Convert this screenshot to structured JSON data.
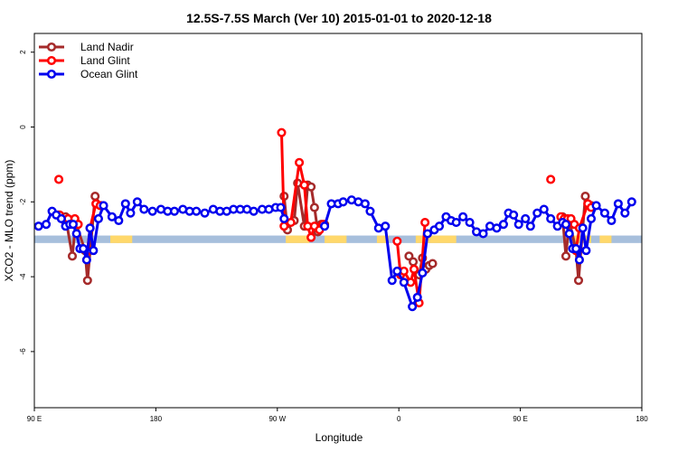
{
  "chart_data": {
    "type": "line",
    "title": "12.5S-7.5S March (Ver 10)   2015-01-01 to 2020-12-18",
    "xlabel": "Longitude",
    "ylabel": "XCO2 - MLO trend (ppm)",
    "xlim": [
      90,
      450
    ],
    "ylim": [
      -7.5,
      2.5
    ],
    "x_ticks": [
      {
        "value": 90,
        "label": "90 E"
      },
      {
        "value": 162,
        "label": "180"
      },
      {
        "value": 234,
        "label": "90 W"
      },
      {
        "value": 306,
        "label": "0"
      },
      {
        "value": 378,
        "label": "90 E"
      },
      {
        "value": 450,
        "label": "180"
      }
    ],
    "y_ticks": [
      {
        "value": 2,
        "label": "2"
      },
      {
        "value": 0,
        "label": "0"
      },
      {
        "value": -2,
        "label": "-2"
      },
      {
        "value": -4,
        "label": "-4"
      },
      {
        "value": -6,
        "label": "-6"
      }
    ],
    "grid": false,
    "legend_position": "top-left",
    "band": {
      "ymin": -3.1,
      "ymax": -2.9,
      "color": "#a7bfdc"
    },
    "land_mask": [
      {
        "x0": 135,
        "x1": 140
      },
      {
        "x0": 139,
        "x1": 148
      },
      {
        "x0": 239,
        "x1": 253
      },
      {
        "x0": 262,
        "x1": 275
      },
      {
        "x0": 293,
        "x1": 300
      },
      {
        "x0": 316,
        "x1": 322
      },
      {
        "x0": 322,
        "x1": 340
      },
      {
        "x0": 409,
        "x1": 420
      },
      {
        "x0": 425,
        "x1": 432
      }
    ],
    "land_mask_color": "#ffd86b",
    "series": [
      {
        "name": "Land Nadir",
        "color": "#a52a2a",
        "segments": [
          [
            [
              108.5,
              -2.4
            ],
            [
              112.5,
              -3.45
            ],
            [
              114.5,
              -2.55
            ],
            [
              120,
              -3.3
            ],
            [
              121.5,
              -4.1
            ],
            [
              126,
              -1.85
            ],
            [
              129.5,
              -2.1
            ]
          ],
          [
            [
              238,
              -1.85
            ],
            [
              240,
              -2.75
            ],
            [
              244,
              -2.5
            ],
            [
              246,
              -1.5
            ],
            [
              250,
              -2.65
            ],
            [
              252,
              -1.55
            ],
            [
              254,
              -1.6
            ],
            [
              256,
              -2.15
            ],
            [
              258,
              -2.8
            ],
            [
              260,
              -2.6
            ],
            [
              262,
              -2.6
            ]
          ],
          [
            [
              312,
              -3.45
            ],
            [
              314.5,
              -3.6
            ],
            [
              318,
              -3.95
            ],
            [
              320,
              -3.5
            ],
            [
              322,
              -3.8
            ],
            [
              324,
              -3.7
            ],
            [
              326,
              -3.65
            ]
          ],
          [
            [
              403,
              -2.4
            ],
            [
              405,
              -3.45
            ],
            [
              407,
              -2.5
            ],
            [
              411,
              -3.3
            ],
            [
              412.5,
              -4.1
            ],
            [
              416.5,
              -1.85
            ],
            [
              420,
              -2.1
            ]
          ]
        ],
        "outliers": []
      },
      {
        "name": "Land Glint",
        "color": "#ff0000",
        "segments": [
          [
            [
              104,
              -2.35
            ],
            [
              108,
              -2.5
            ],
            [
              110,
              -2.45
            ],
            [
              114,
              -2.45
            ],
            [
              116,
              -2.6
            ]
          ],
          [
            [
              121.5,
              -3.3
            ],
            [
              123,
              -2.7
            ],
            [
              126.5,
              -2.05
            ],
            [
              129,
              -2.1
            ]
          ],
          [
            [
              236.5,
              -0.15
            ],
            [
              238,
              -2.65
            ],
            [
              242,
              -2.55
            ],
            [
              247,
              -0.95
            ],
            [
              250,
              -1.55
            ],
            [
              252,
              -2.65
            ],
            [
              254,
              -2.95
            ],
            [
              256,
              -2.65
            ],
            [
              259,
              -2.75
            ],
            [
              261,
              -2.6
            ]
          ],
          [
            [
              305,
              -3.05
            ],
            [
              307,
              -3.95
            ],
            [
              309,
              -3.85
            ],
            [
              313,
              -4.15
            ],
            [
              315,
              -3.8
            ],
            [
              318,
              -4.7
            ],
            [
              321.5,
              -2.55
            ]
          ],
          [
            [
              402,
              -2.4
            ],
            [
              404,
              -2.45
            ],
            [
              406,
              -2.45
            ],
            [
              408,
              -2.45
            ],
            [
              410,
              -2.6
            ]
          ],
          [
            [
              411,
              -3.3
            ],
            [
              413,
              -2.7
            ],
            [
              418,
              -2.05
            ],
            [
              420,
              -2.15
            ]
          ]
        ],
        "outliers": [
          [
            104.5,
            -1.4
          ],
          [
            105,
            -2.35
          ],
          [
            396,
            -1.4
          ]
        ]
      },
      {
        "name": "Ocean Glint",
        "color": "#0000ee",
        "segments": [
          [
            [
              92.5,
              -2.65
            ],
            [
              97,
              -2.6
            ],
            [
              100.5,
              -2.25
            ],
            [
              103,
              -2.35
            ],
            [
              106,
              -2.45
            ],
            [
              108.5,
              -2.65
            ],
            [
              111,
              -2.6
            ],
            [
              113,
              -2.6
            ],
            [
              115,
              -2.85
            ],
            [
              117,
              -3.25
            ],
            [
              119,
              -3.25
            ],
            [
              121,
              -3.55
            ],
            [
              123,
              -2.7
            ],
            [
              125,
              -3.3
            ],
            [
              128,
              -2.45
            ],
            [
              131,
              -2.1
            ],
            [
              136,
              -2.4
            ],
            [
              140,
              -2.5
            ],
            [
              144,
              -2.05
            ],
            [
              147,
              -2.3
            ],
            [
              151,
              -2.0
            ],
            [
              155,
              -2.2
            ],
            [
              160,
              -2.25
            ],
            [
              165,
              -2.2
            ],
            [
              169,
              -2.25
            ],
            [
              173,
              -2.25
            ],
            [
              178,
              -2.2
            ],
            [
              182,
              -2.25
            ],
            [
              186,
              -2.25
            ],
            [
              191,
              -2.3
            ],
            [
              196,
              -2.2
            ],
            [
              200,
              -2.25
            ],
            [
              204,
              -2.25
            ],
            [
              208,
              -2.2
            ],
            [
              212,
              -2.2
            ],
            [
              216,
              -2.2
            ],
            [
              220,
              -2.25
            ],
            [
              225,
              -2.2
            ],
            [
              229,
              -2.2
            ],
            [
              233,
              -2.15
            ],
            [
              236,
              -2.15
            ],
            [
              238,
              -2.45
            ]
          ],
          [
            [
              262,
              -2.65
            ],
            [
              266,
              -2.05
            ],
            [
              270,
              -2.05
            ],
            [
              273,
              -2.0
            ],
            [
              278,
              -1.95
            ],
            [
              282,
              -2.0
            ],
            [
              286,
              -2.05
            ],
            [
              289,
              -2.25
            ],
            [
              294,
              -2.7
            ],
            [
              298,
              -2.65
            ],
            [
              302,
              -4.1
            ],
            [
              305,
              -3.85
            ],
            [
              309,
              -4.15
            ],
            [
              314,
              -4.8
            ],
            [
              317,
              -4.55
            ],
            [
              320,
              -3.9
            ],
            [
              323,
              -2.85
            ],
            [
              327,
              -2.75
            ],
            [
              330,
              -2.65
            ],
            [
              334,
              -2.4
            ],
            [
              337,
              -2.5
            ],
            [
              340,
              -2.55
            ],
            [
              344,
              -2.4
            ],
            [
              348,
              -2.55
            ],
            [
              352,
              -2.8
            ],
            [
              356,
              -2.85
            ],
            [
              360,
              -2.65
            ],
            [
              364,
              -2.7
            ],
            [
              368,
              -2.6
            ],
            [
              371,
              -2.3
            ],
            [
              374,
              -2.35
            ],
            [
              377,
              -2.6
            ],
            [
              381,
              -2.45
            ],
            [
              384,
              -2.65
            ],
            [
              388,
              -2.3
            ],
            [
              392,
              -2.2
            ],
            [
              396,
              -2.45
            ],
            [
              400,
              -2.65
            ],
            [
              403,
              -2.55
            ],
            [
              405,
              -2.6
            ],
            [
              407,
              -2.85
            ],
            [
              409,
              -3.25
            ],
            [
              411,
              -3.25
            ],
            [
              413,
              -3.55
            ],
            [
              415,
              -2.7
            ],
            [
              417,
              -3.3
            ],
            [
              420,
              -2.45
            ],
            [
              423,
              -2.1
            ],
            [
              428,
              -2.3
            ],
            [
              432,
              -2.5
            ],
            [
              436,
              -2.05
            ],
            [
              440,
              -2.3
            ],
            [
              444,
              -2.0
            ]
          ]
        ],
        "outliers": []
      }
    ]
  }
}
